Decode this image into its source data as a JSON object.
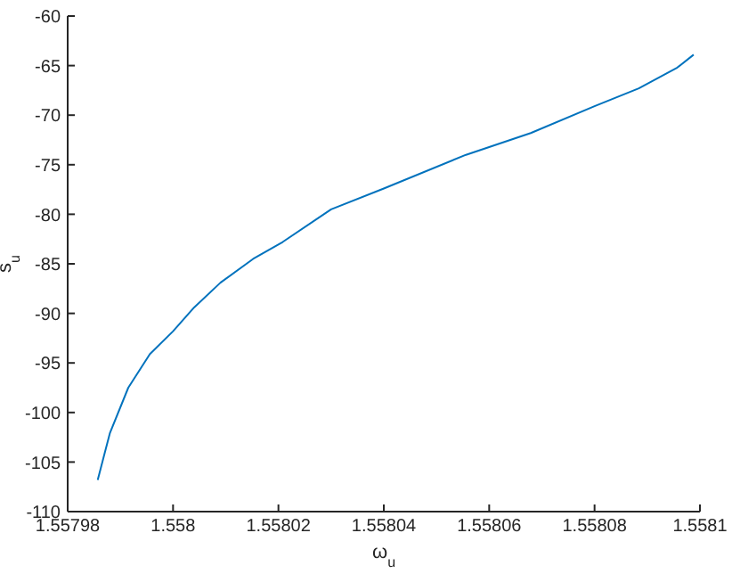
{
  "chart_data": {
    "type": "line",
    "xlabel": "ω$_{u}$",
    "ylabel": "s$_{u}$",
    "x": [
      1.5579857,
      1.557988,
      1.5579915,
      1.5579956,
      1.558,
      1.558004,
      1.558009,
      1.5580152,
      1.5580208,
      1.55803,
      1.55804,
      1.5580556,
      1.5580679,
      1.55808,
      1.5580884,
      1.5580957,
      1.5580988
    ],
    "series": [
      {
        "color": "#0072bd",
        "values": [
          -106.8,
          -102.1,
          -97.5,
          -94.1,
          -91.8,
          -89.4,
          -86.9,
          -84.5,
          -82.8,
          -79.5,
          -77.4,
          -74.0,
          -71.8,
          -69.1,
          -67.3,
          -65.2,
          -63.9
        ]
      }
    ],
    "xlim": [
      1.55798,
      1.5581
    ],
    "xticks": [
      1.55798,
      1.558,
      1.55802,
      1.55804,
      1.55806,
      1.55808,
      1.5581
    ],
    "ylim": [
      -110,
      -60
    ],
    "yticks": [
      -110,
      -105,
      -100,
      -95,
      -90,
      -85,
      -80,
      -75,
      -70,
      -65,
      -60
    ],
    "marker": "none",
    "line_style": "solid"
  }
}
